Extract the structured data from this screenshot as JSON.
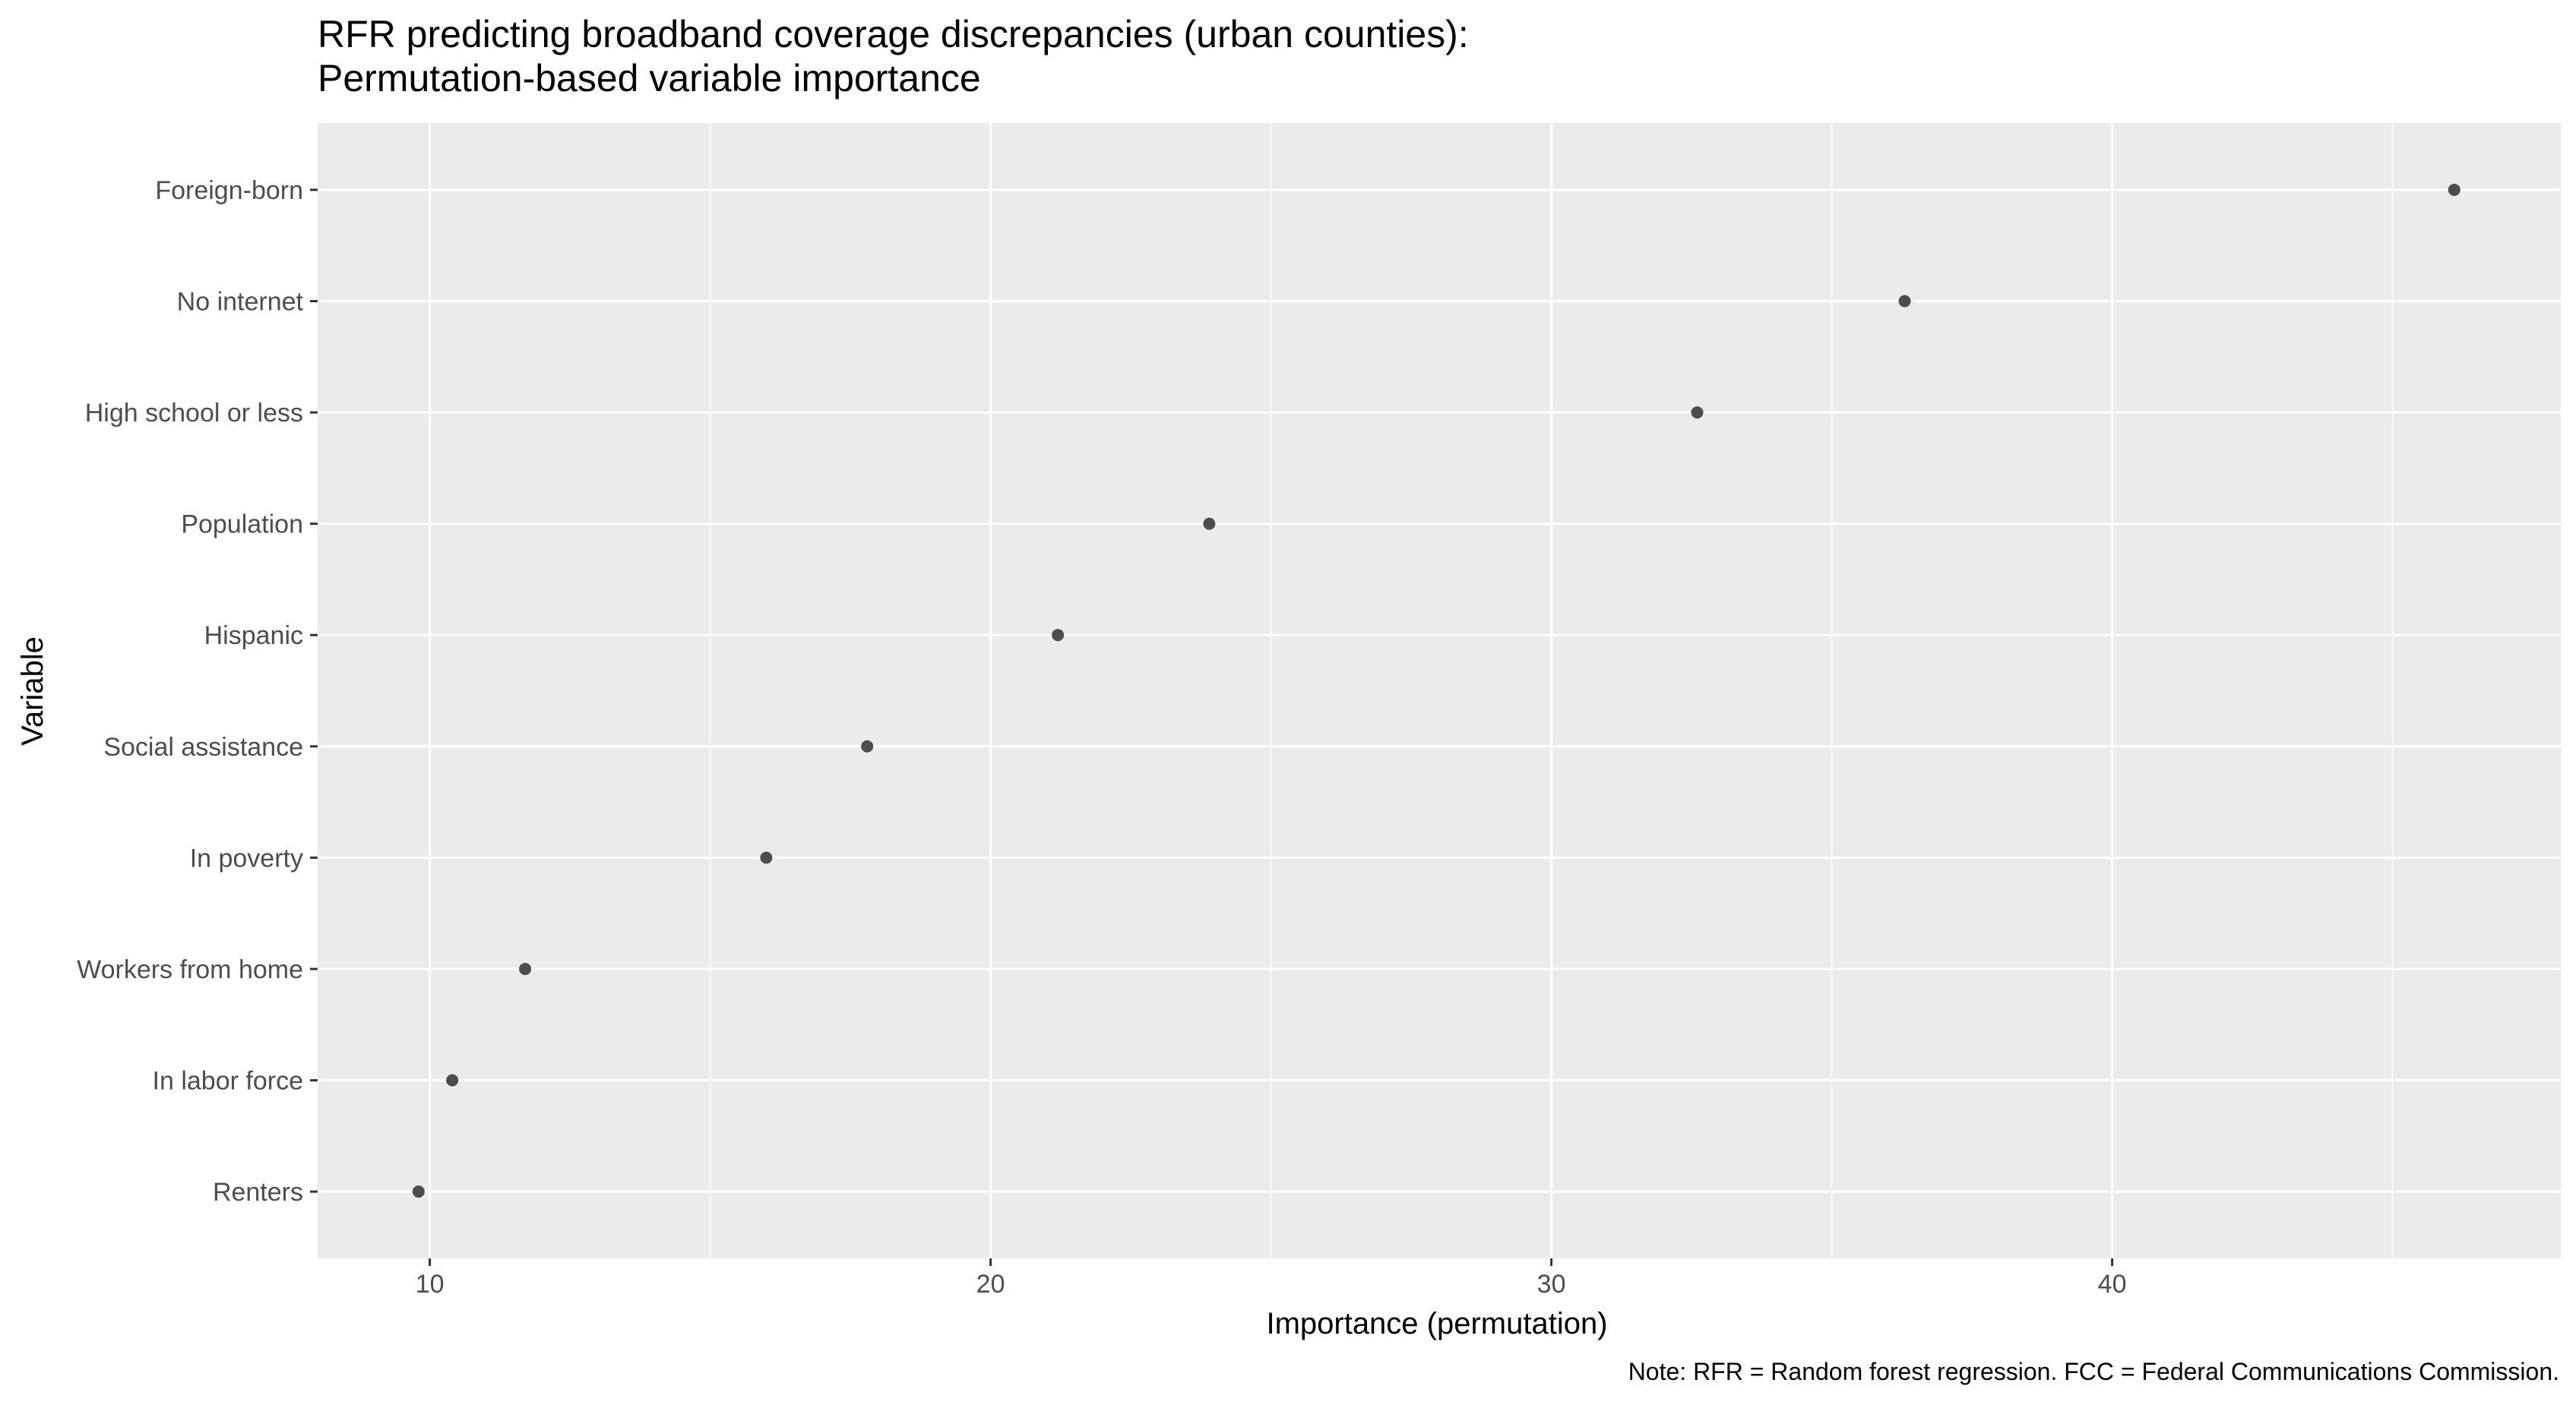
{
  "chart_data": {
    "type": "scatter",
    "title": "RFR predicting broadband coverage discrepancies (urban counties):",
    "subtitle": "Permutation-based variable importance",
    "xlabel": "Importance (permutation)",
    "ylabel": "Variable",
    "caption": "Note: RFR = Random forest regression. FCC = Federal Communications Commission.",
    "xlim": [
      8,
      48
    ],
    "xticks": [
      10,
      20,
      30,
      40
    ],
    "x_minor_ticks": [
      15,
      25,
      35,
      45
    ],
    "grid": true,
    "legend": "none",
    "categories": [
      "Foreign-born",
      "No internet",
      "High school or less",
      "Population",
      "Hispanic",
      "Social assistance",
      "In poverty",
      "Workers from home",
      "In labor force",
      "Renters"
    ],
    "values": [
      46.1,
      36.3,
      32.6,
      23.9,
      21.2,
      17.8,
      16.0,
      11.7,
      10.4,
      9.8
    ],
    "colors": {
      "panel": "#EBEBEB",
      "grid_major": "#FFFFFF",
      "point": "#4D4D4D",
      "tick_text": "#4D4D4D",
      "tick_mark": "#333333",
      "text": "#000000"
    }
  }
}
